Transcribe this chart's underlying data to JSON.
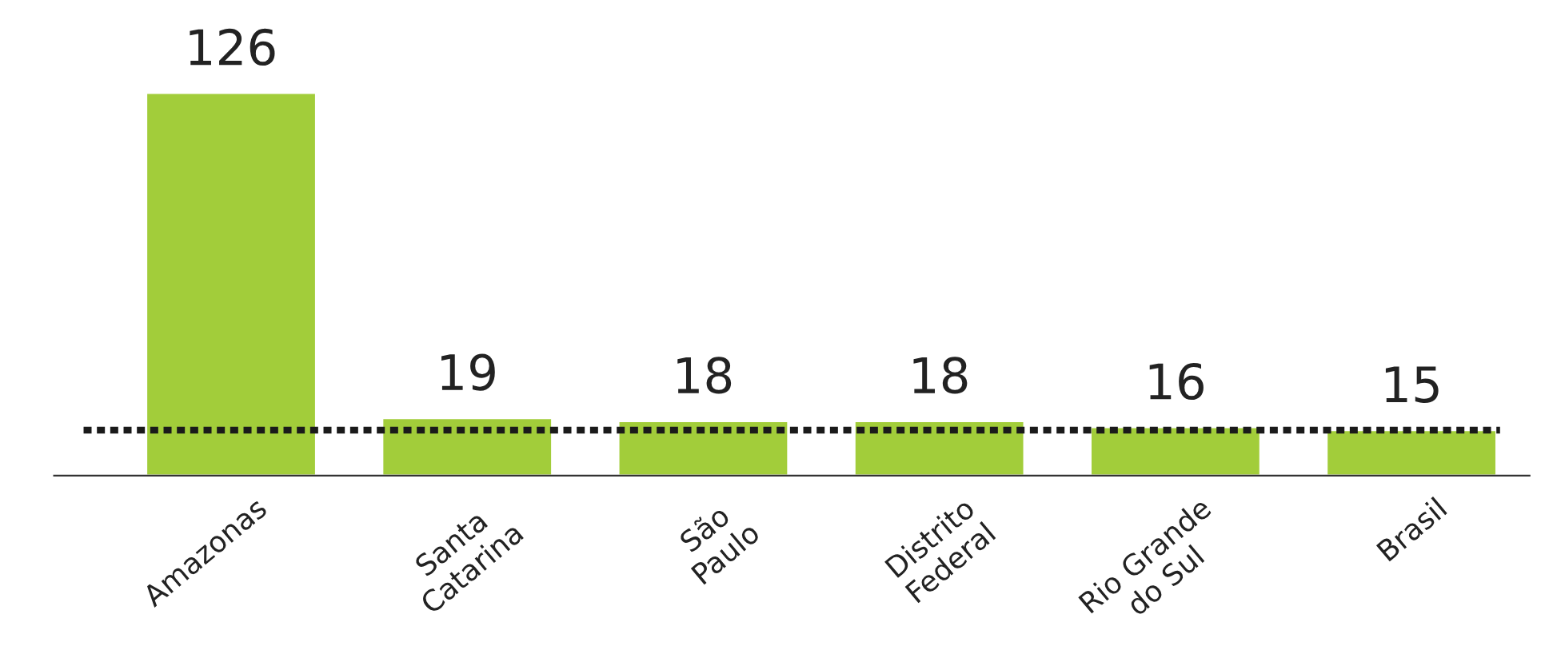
{
  "chart_data": {
    "type": "bar",
    "categories": [
      "Amazonas",
      "Santa\nCatarina",
      "São\nPaulo",
      "Distrito\nFederal",
      "Rio Grande\ndo Sul",
      "Brasil"
    ],
    "values": [
      126,
      19,
      18,
      18,
      16,
      15
    ],
    "color": "#a2cd3a",
    "data_labels": true,
    "ref_lines": [
      {
        "axis": "y",
        "value": 15,
        "color": "#1a1a1a",
        "line_style": "dotted"
      }
    ],
    "grid": false,
    "legend": false
  }
}
